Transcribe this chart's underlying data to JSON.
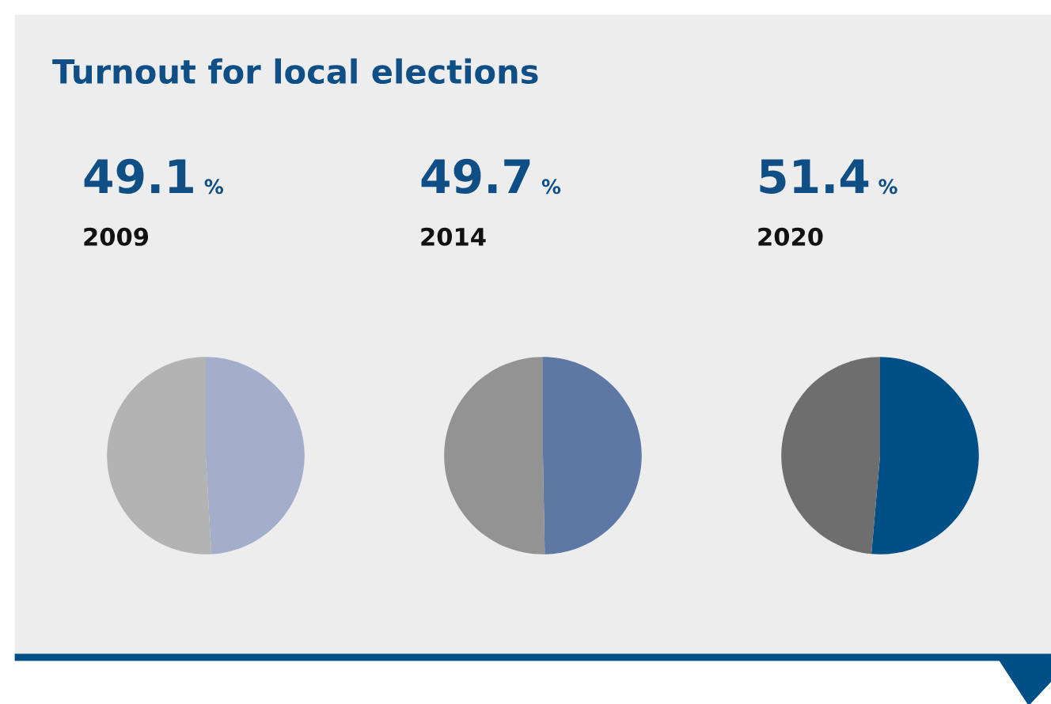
{
  "chart_data": [
    {
      "type": "other",
      "title": "Turnout for local elections"
    },
    {
      "type": "pie",
      "title": "49.1 %",
      "subtitle": "2009",
      "categories": [
        null,
        null
      ],
      "values": [
        49.1,
        50.9
      ],
      "colors": [
        "#a4aecb",
        "#b3b3b3"
      ]
    },
    {
      "type": "pie",
      "title": "49.7 %",
      "subtitle": "2014",
      "categories": [
        null,
        null
      ],
      "values": [
        49.7,
        50.3
      ],
      "colors": [
        "#5e78a6",
        "#939393"
      ]
    },
    {
      "type": "pie",
      "title": "51.4 %",
      "subtitle": "2020",
      "categories": [
        null,
        null
      ],
      "values": [
        51.4,
        48.6
      ],
      "colors": [
        "#004f87",
        "#6e6e6e"
      ]
    }
  ]
}
